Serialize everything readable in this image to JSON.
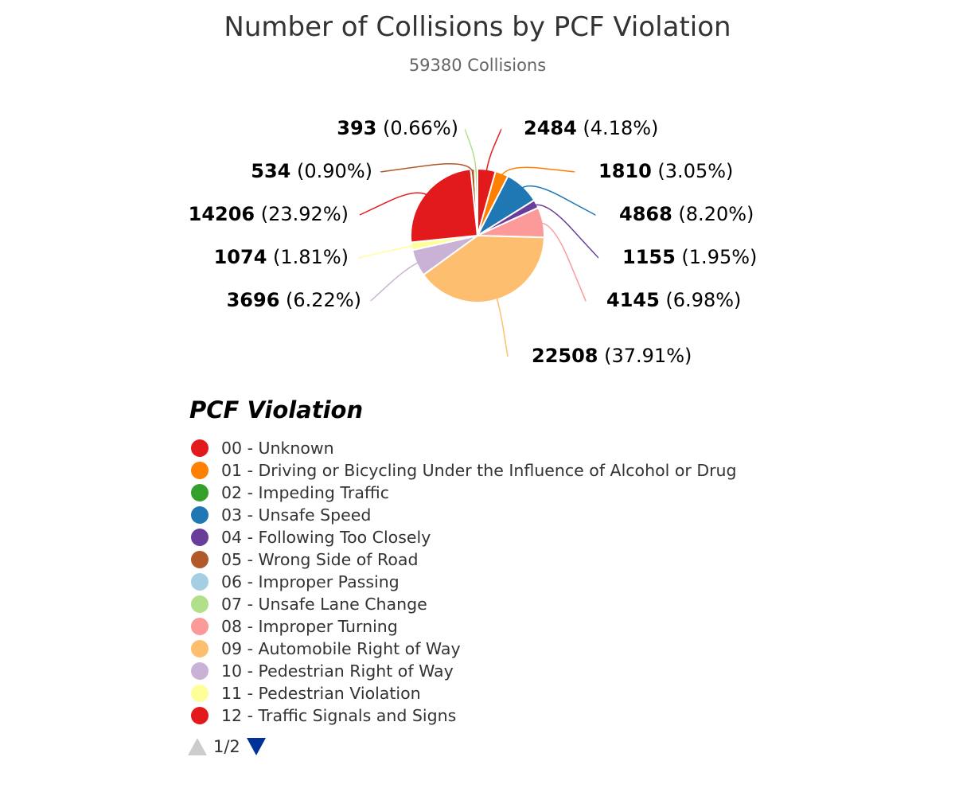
{
  "title": "Number of Collisions by PCF Violation",
  "subtitle": "59380 Collisions",
  "legend_title": "PCF Violation",
  "pagination": {
    "text": "1/2"
  },
  "chart_data": {
    "type": "pie",
    "title": "Number of Collisions by PCF Violation",
    "subtitle": "59380 Collisions",
    "total": 59380,
    "slices": [
      {
        "name": "00 - Unknown",
        "value": 2484,
        "pct": "4.18%",
        "color": "#e31a1c"
      },
      {
        "name": "01 - Driving or Bicycling Under the Influence of Alcohol or Drug",
        "value": 1810,
        "pct": "3.05%",
        "color": "#ff7f00"
      },
      {
        "name": "02 - Impeding Traffic",
        "value": 0,
        "pct": "",
        "color": "#33a02c"
      },
      {
        "name": "03 - Unsafe Speed",
        "value": 4868,
        "pct": "8.20%",
        "color": "#1f78b4"
      },
      {
        "name": "04 - Following Too Closely",
        "value": 1155,
        "pct": "1.95%",
        "color": "#6a3d9a"
      },
      {
        "name": "05 - Wrong Side of Road",
        "value": 0,
        "pct": "",
        "color": "#b15928"
      },
      {
        "name": "06 - Improper Passing",
        "value": 0,
        "pct": "",
        "color": "#a6cee3"
      },
      {
        "name": "07 - Unsafe Lane Change",
        "value": 0,
        "pct": "",
        "color": "#b2df8a"
      },
      {
        "name": "08 - Improper Turning",
        "value": 4145,
        "pct": "6.98%",
        "color": "#fb9a99"
      },
      {
        "name": "09 - Automobile Right of Way",
        "value": 22508,
        "pct": "37.91%",
        "color": "#fdbf6f"
      },
      {
        "name": "10 - Pedestrian Right of Way",
        "value": 3696,
        "pct": "6.22%",
        "color": "#cab2d6"
      },
      {
        "name": "11 - Pedestrian Violation",
        "value": 1074,
        "pct": "1.81%",
        "color": "#ffff99"
      },
      {
        "name": "12 - Traffic Signals and Signs",
        "value": 14206,
        "pct": "23.92%",
        "color": "#e31a1c"
      },
      {
        "name": "",
        "value": 534,
        "pct": "0.90%",
        "color": "#b15928"
      },
      {
        "name": "",
        "value": 393,
        "pct": "0.66%",
        "color": "#b2df8a"
      }
    ],
    "legend": [
      {
        "label": "00 - Unknown",
        "color": "#e31a1c"
      },
      {
        "label": "01 - Driving or Bicycling Under the Influence of Alcohol or Drug",
        "color": "#ff7f00"
      },
      {
        "label": "02 - Impeding Traffic",
        "color": "#33a02c"
      },
      {
        "label": "03 - Unsafe Speed",
        "color": "#1f78b4"
      },
      {
        "label": "04 - Following Too Closely",
        "color": "#6a3d9a"
      },
      {
        "label": "05 - Wrong Side of Road",
        "color": "#b15928"
      },
      {
        "label": "06 - Improper Passing",
        "color": "#a6cee3"
      },
      {
        "label": "07 - Unsafe Lane Change",
        "color": "#b2df8a"
      },
      {
        "label": "08 - Improper Turning",
        "color": "#fb9a99"
      },
      {
        "label": "09 - Automobile Right of Way",
        "color": "#fdbf6f"
      },
      {
        "label": "10 - Pedestrian Right of Way",
        "color": "#cab2d6"
      },
      {
        "label": "11 - Pedestrian Violation",
        "color": "#ffff99"
      },
      {
        "label": "12 - Traffic Signals and Signs",
        "color": "#e31a1c"
      }
    ],
    "legend_placement": "bottom"
  }
}
